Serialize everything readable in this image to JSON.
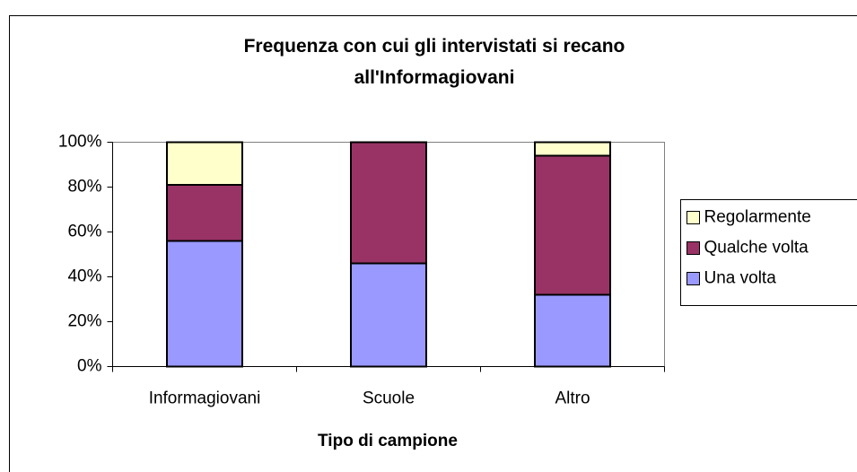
{
  "chart_data": {
    "type": "stacked_bar",
    "title": "Frequenza con cui gli intervistati si recano all'Informagiovani",
    "x_label": "Tipo di campione",
    "categories": [
      "Informagiovani",
      "Scuole",
      "Altro"
    ],
    "series": [
      {
        "name": "Una volta",
        "color": "#9999ff",
        "values": [
          56,
          46,
          32
        ]
      },
      {
        "name": "Qualche volta",
        "color": "#993366",
        "values": [
          25,
          54,
          62
        ]
      },
      {
        "name": "Regolarmente",
        "color": "#ffffcc",
        "values": [
          19,
          0,
          6
        ]
      }
    ],
    "ylim": [
      0,
      100
    ],
    "yticks": [
      {
        "value": 0,
        "label": "0%"
      },
      {
        "value": 20,
        "label": "20%"
      },
      {
        "value": 40,
        "label": "40%"
      },
      {
        "value": 60,
        "label": "60%"
      },
      {
        "value": 80,
        "label": "80%"
      },
      {
        "value": 100,
        "label": "100%"
      }
    ],
    "grid": false,
    "legend": "right"
  }
}
